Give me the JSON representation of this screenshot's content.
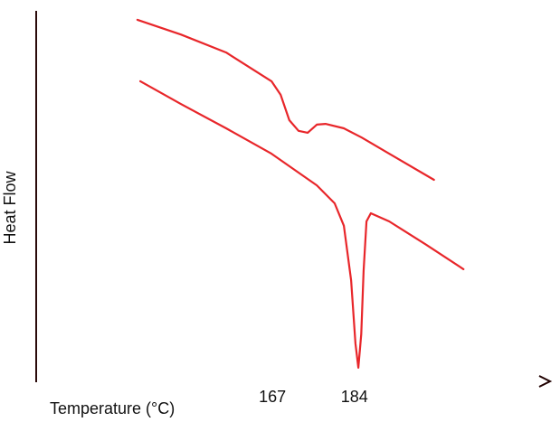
{
  "chart_data": {
    "type": "line",
    "x_label": "Temperature (°C)",
    "y_label": "Heat Flow",
    "xlim": [
      118,
      224
    ],
    "ylim": [
      0,
      100
    ],
    "xticks": [
      167,
      184
    ],
    "series": [
      {
        "color": "#e8262a",
        "x": [
          139.0,
          148.0,
          157.4,
          166.8,
          168.7,
          170.5,
          172.4,
          174.3,
          176.2,
          178.0,
          181.8,
          185.5,
          191.2,
          200.5
        ],
        "values": [
          98.3,
          94.3,
          89.4,
          81.6,
          77.9,
          71.0,
          68.1,
          67.6,
          69.8,
          70.0,
          68.8,
          66.3,
          61.9,
          54.8
        ]
      },
      {
        "color": "#e8262a",
        "x": [
          139.6,
          148.0,
          157.4,
          166.8,
          176.2,
          179.9,
          181.8,
          183.3,
          184.2,
          184.8,
          185.4,
          185.9,
          186.5,
          187.4,
          191.2,
          198.7,
          206.6
        ],
        "values": [
          81.6,
          75.4,
          68.8,
          61.9,
          53.3,
          48.4,
          42.3,
          27.5,
          10.3,
          3.7,
          12.8,
          30.0,
          43.5,
          45.7,
          43.5,
          37.3,
          30.5
        ]
      }
    ]
  }
}
